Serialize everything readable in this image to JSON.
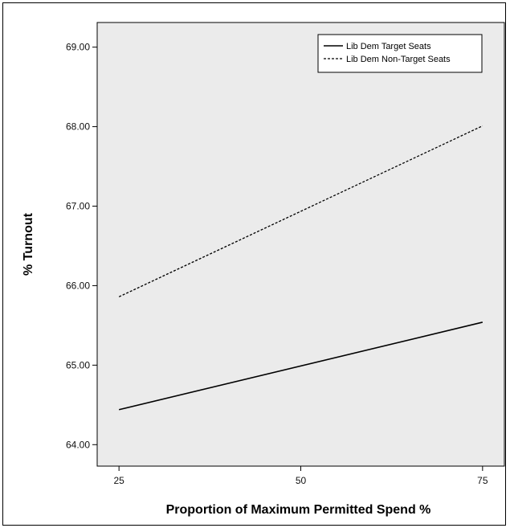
{
  "chart_data": {
    "type": "line",
    "x": [
      25,
      75
    ],
    "x_ticks": [
      "25",
      "50",
      "75"
    ],
    "y_ticks": [
      "64.00",
      "65.00",
      "66.00",
      "67.00",
      "68.00",
      "69.00"
    ],
    "xlabel": "Proportion of Maximum Permitted Spend %",
    "ylabel": "% Turnout",
    "xlim": [
      22,
      78
    ],
    "ylim": [
      63.73,
      69.31
    ],
    "grid": false,
    "legend_position": "top-right",
    "plot_background": "#ebebeb",
    "series": [
      {
        "name": "Lib Dem Target Seats",
        "style": "solid",
        "color": "#000000",
        "values": [
          64.44,
          65.54
        ]
      },
      {
        "name": "Lib Dem Non-Target Seats",
        "style": "dashed",
        "color": "#000000",
        "values": [
          65.86,
          68.01
        ]
      }
    ]
  }
}
